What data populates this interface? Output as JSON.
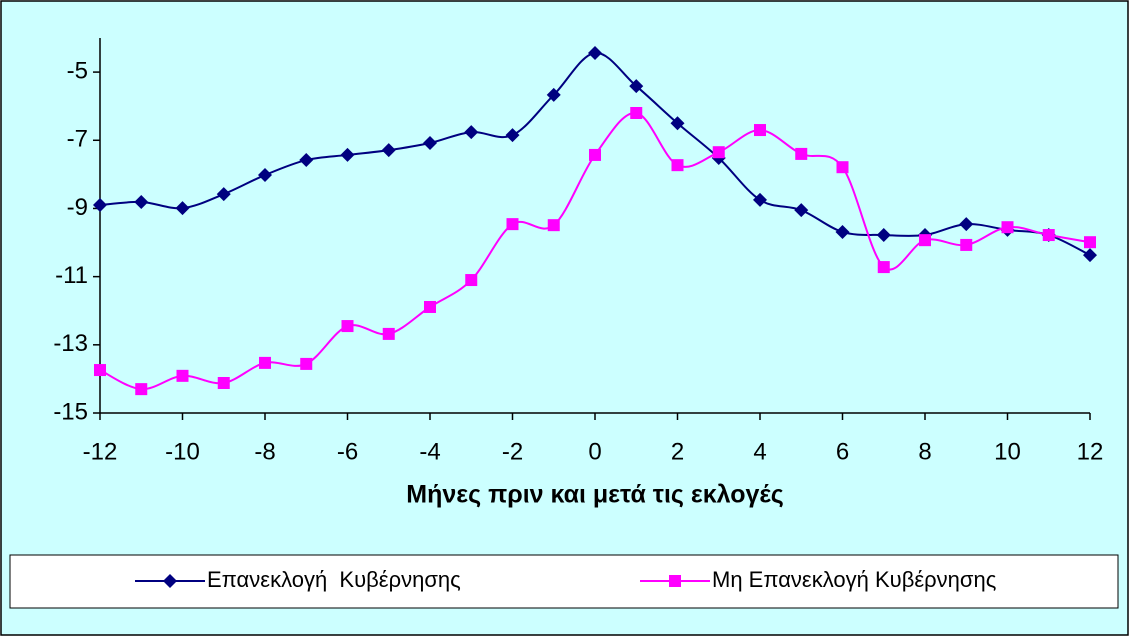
{
  "chart_data": {
    "type": "line",
    "x_label": "Μήνες πριν και μετά τις εκλογές",
    "x": [
      -12,
      -11,
      -10,
      -9,
      -8,
      -7,
      -6,
      -5,
      -4,
      -3,
      -2,
      -1,
      0,
      1,
      2,
      3,
      4,
      5,
      6,
      7,
      8,
      9,
      10,
      11,
      12
    ],
    "series": [
      {
        "name": "Επανεκλογή  Κυβέρνησης",
        "color": "#000080",
        "marker": "diamond",
        "values": [
          -8.9,
          -8.81,
          -8.99,
          -8.58,
          -8.02,
          -7.58,
          -7.43,
          -7.29,
          -7.08,
          -6.76,
          -6.85,
          -5.67,
          -4.44,
          -5.41,
          -6.5,
          -7.52,
          -8.75,
          -9.05,
          -9.69,
          -9.78,
          -9.78,
          -9.46,
          -9.63,
          -9.78,
          -10.37
        ]
      },
      {
        "name": "Μη Επανεκλογή Κυβέρνησης",
        "color": "#ff00ff",
        "marker": "square",
        "values": [
          -13.74,
          -14.3,
          -13.91,
          -14.12,
          -13.53,
          -13.56,
          -12.45,
          -12.68,
          -11.89,
          -11.1,
          -9.46,
          -9.49,
          -7.43,
          -6.2,
          -7.73,
          -7.35,
          -6.7,
          -7.4,
          -7.79,
          -10.72,
          -9.93,
          -10.07,
          -9.55,
          -9.78,
          -9.99
        ]
      }
    ],
    "xlim": [
      -12,
      12
    ],
    "xticks": [
      -12,
      -10,
      -8,
      -6,
      -4,
      -2,
      0,
      2,
      4,
      6,
      8,
      10,
      12
    ],
    "ylim": [
      -15,
      -4
    ],
    "yticks": [
      -15,
      -13,
      -11,
      -9,
      -7,
      -5
    ],
    "smooth": true,
    "grid": false,
    "legend": "bottom",
    "background": "#ccffff"
  }
}
